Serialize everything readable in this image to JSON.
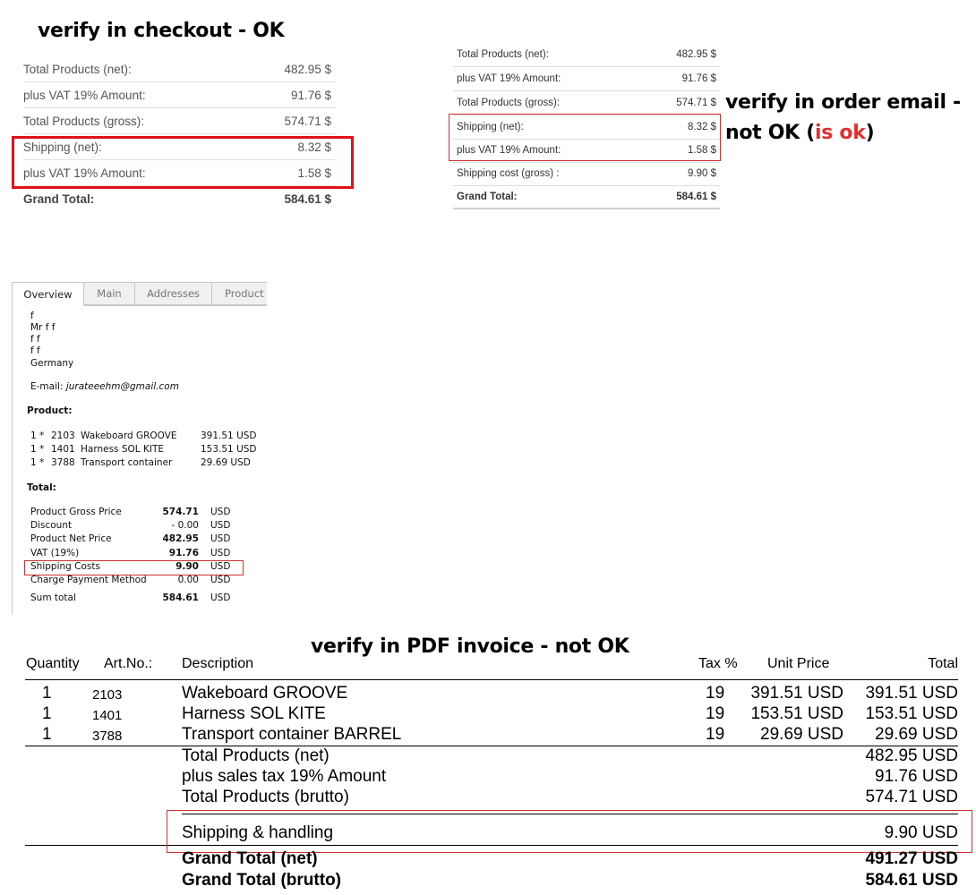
{
  "headings": {
    "checkout": "verify in checkout - OK",
    "email_line1": "verify in order email -",
    "email_line2_prefix": "not OK (",
    "email_line2_red": "is ok",
    "email_line2_suffix": ")",
    "pdf": "verify in PDF invoice - not OK"
  },
  "checkout": {
    "rows": [
      {
        "label": "Total Products (net):",
        "value": "482.95 $"
      },
      {
        "label": "plus VAT 19% Amount:",
        "value": "91.76 $"
      },
      {
        "label": "Total Products (gross):",
        "value": "574.71 $"
      },
      {
        "label": "Shipping (net):",
        "value": "8.32 $"
      },
      {
        "label": "plus VAT 19% Amount:",
        "value": "1.58 $"
      },
      {
        "label": "Grand Total:",
        "value": "584.61 $"
      }
    ]
  },
  "email": {
    "rows": [
      {
        "label": "Total Products (net):",
        "value": "482.95 $"
      },
      {
        "label": "plus VAT 19% Amount:",
        "value": "91.76 $"
      },
      {
        "label": "Total Products (gross):",
        "value": "574.71 $"
      },
      {
        "label": "Shipping (net):",
        "value": "8.32 $"
      },
      {
        "label": "plus VAT 19% Amount:",
        "value": "1.58 $"
      },
      {
        "label": "Shipping cost (gross) :",
        "value": "9.90 $"
      },
      {
        "label": "Grand Total:",
        "value": "584.61 $"
      }
    ]
  },
  "admin": {
    "tabs": [
      "Overview",
      "Main",
      "Addresses",
      "Product"
    ],
    "address": [
      "f",
      "Mr f f",
      "f f",
      "f f",
      "Germany"
    ],
    "email_label": "E-mail:",
    "email_value": "jurateeehm@gmail.com",
    "product_heading": "Product:",
    "products": [
      {
        "qty": "1 *",
        "art": "2103",
        "name": "Wakeboard GROOVE",
        "price": "391.51 USD"
      },
      {
        "qty": "1 *",
        "art": "1401",
        "name": "Harness SOL KITE",
        "price": "153.51 USD"
      },
      {
        "qty": "1 *",
        "art": "3788",
        "name": "Transport container",
        "price": "29.69 USD"
      }
    ],
    "total_heading": "Total:",
    "totals": [
      {
        "label": "Product Gross Price",
        "value": "574.71",
        "cur": "USD"
      },
      {
        "label": "Discount",
        "value": "- 0.00",
        "cur": "USD"
      },
      {
        "label": "Product Net Price",
        "value": "482.95",
        "cur": "USD"
      },
      {
        "label": "VAT (19%)",
        "value": "91.76",
        "cur": "USD"
      },
      {
        "label": "Shipping Costs",
        "value": "9.90",
        "cur": "USD"
      },
      {
        "label": "Charge Payment Method",
        "value": "0.00",
        "cur": "USD"
      },
      {
        "label": "Sum total",
        "value": "584.61",
        "cur": "USD"
      }
    ]
  },
  "pdf": {
    "headers": {
      "quantity": "Quantity",
      "artno": "Art.No.:",
      "description": "Description",
      "tax": "Tax %",
      "unit_price": "Unit Price",
      "total": "Total"
    },
    "items": [
      {
        "qty": "1",
        "art": "2103",
        "desc": "Wakeboard GROOVE",
        "tax": "19",
        "unit": "391.51 USD",
        "total": "391.51 USD"
      },
      {
        "qty": "1",
        "art": "1401",
        "desc": "Harness SOL KITE",
        "tax": "19",
        "unit": "153.51 USD",
        "total": "153.51 USD"
      },
      {
        "qty": "1",
        "art": "3788",
        "desc": "Transport container BARREL",
        "tax": "19",
        "unit": "29.69 USD",
        "total": "29.69 USD"
      }
    ],
    "summary": [
      {
        "label": "Total Products (net)",
        "value": "482.95 USD"
      },
      {
        "label": "plus sales tax 19% Amount",
        "value": "91.76 USD"
      },
      {
        "label": "Total Products (brutto)",
        "value": "574.71 USD"
      }
    ],
    "shipping": {
      "label": "Shipping & handling",
      "value": "9.90 USD"
    },
    "grand": [
      {
        "label": "Grand Total (net)",
        "value": "491.27 USD"
      },
      {
        "label": "Grand Total (brutto)",
        "value": "584.61 USD"
      }
    ]
  }
}
